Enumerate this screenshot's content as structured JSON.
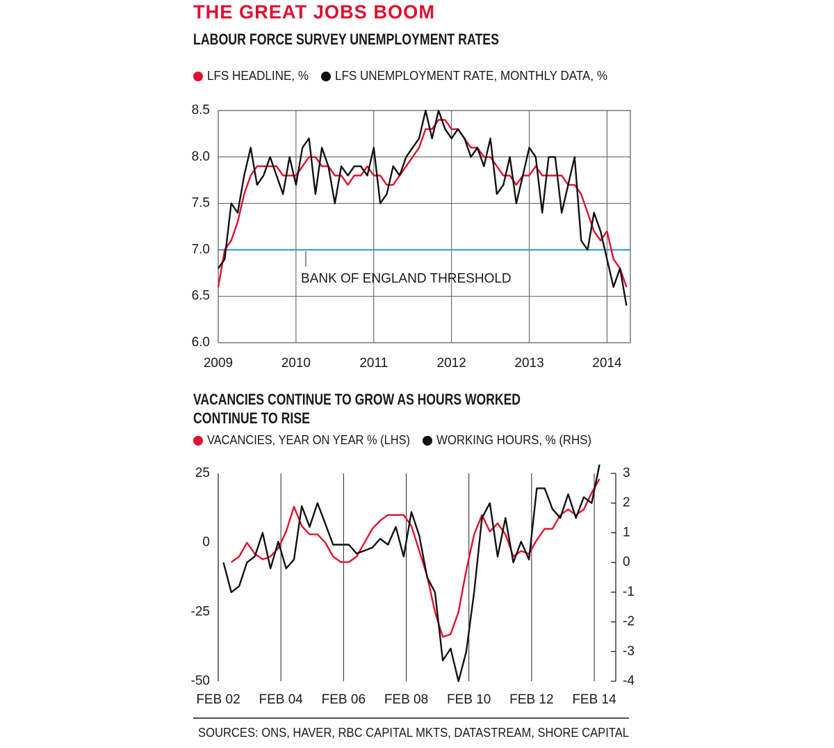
{
  "header": {
    "title": "THE GREAT JOBS BOOM"
  },
  "source": "SOURCES: ONS, HAVER, RBC CAPITAL MKTS, DATASTREAM, SHORE CAPITAL",
  "chart_data": [
    {
      "type": "line",
      "title": [
        "LABOUR FORCE SURVEY UNEMPLOYMENT RATES"
      ],
      "x": [
        2009,
        2009.083,
        2009.167,
        2009.25,
        2009.333,
        2009.417,
        2009.5,
        2009.583,
        2009.667,
        2009.75,
        2009.833,
        2009.917,
        2010,
        2010.083,
        2010.167,
        2010.25,
        2010.333,
        2010.417,
        2010.5,
        2010.583,
        2010.667,
        2010.75,
        2010.833,
        2010.917,
        2011,
        2011.083,
        2011.167,
        2011.25,
        2011.333,
        2011.417,
        2011.5,
        2011.583,
        2011.667,
        2011.75,
        2011.833,
        2011.917,
        2012,
        2012.083,
        2012.167,
        2012.25,
        2012.333,
        2012.417,
        2012.5,
        2012.583,
        2012.667,
        2012.75,
        2012.833,
        2012.917,
        2013,
        2013.083,
        2013.167,
        2013.25,
        2013.333,
        2013.417,
        2013.5,
        2013.583,
        2013.667,
        2013.75,
        2013.833,
        2013.917,
        2014,
        2014.083,
        2014.167,
        2014.25
      ],
      "series": [
        {
          "name": "LFS HEADLINE,  %",
          "color": "#e0102f",
          "values": [
            6.6,
            7.0,
            7.1,
            7.3,
            7.6,
            7.8,
            7.9,
            7.9,
            7.9,
            7.9,
            7.8,
            7.8,
            7.8,
            7.9,
            8.0,
            8.0,
            7.9,
            7.9,
            7.8,
            7.8,
            7.7,
            7.8,
            7.8,
            7.9,
            7.8,
            7.8,
            7.7,
            7.7,
            7.8,
            7.9,
            8.0,
            8.1,
            8.3,
            8.3,
            8.4,
            8.4,
            8.3,
            8.3,
            8.2,
            8.1,
            8.1,
            8.0,
            8.0,
            7.9,
            7.8,
            7.8,
            7.7,
            7.8,
            7.8,
            7.9,
            7.8,
            7.8,
            7.8,
            7.8,
            7.7,
            7.7,
            7.6,
            7.4,
            7.2,
            7.1,
            7.2,
            6.9,
            6.8,
            6.6
          ]
        },
        {
          "name": "LFS UNEMPLOYMENT RATE, MONTHLY DATA, %",
          "color": "#111111",
          "values": [
            6.8,
            6.9,
            7.5,
            7.4,
            7.8,
            8.1,
            7.7,
            7.8,
            8.0,
            7.8,
            7.6,
            8.0,
            7.7,
            8.1,
            8.2,
            7.6,
            8.1,
            7.9,
            7.5,
            7.9,
            7.8,
            7.9,
            7.9,
            7.8,
            8.1,
            7.5,
            7.6,
            7.9,
            7.8,
            8.0,
            8.1,
            8.2,
            8.5,
            8.2,
            8.5,
            8.3,
            8.2,
            8.3,
            8.2,
            8.0,
            8.1,
            7.9,
            8.2,
            7.6,
            7.7,
            8.0,
            7.5,
            7.8,
            8.1,
            8.0,
            7.4,
            8.0,
            8.0,
            7.4,
            7.7,
            8.0,
            7.1,
            7.0,
            7.4,
            7.2,
            6.9,
            6.6,
            6.8,
            6.4
          ]
        }
      ],
      "threshold": {
        "value": 7.0,
        "label": "BANK OF ENGLAND THRESHOLD",
        "color": "#2596c0"
      },
      "xlim": [
        2009,
        2014.3
      ],
      "xticks": [
        2009,
        2010,
        2011,
        2012,
        2013,
        2014
      ],
      "ylim": [
        6,
        8.5
      ],
      "yticks": [
        {
          "value": 6,
          "label": "6.0"
        },
        6.5,
        {
          "value": 7,
          "label": "7.0"
        },
        7.5,
        {
          "value": 8,
          "label": "8.0"
        },
        8.5
      ],
      "grid": true
    },
    {
      "type": "line",
      "title": [
        "VACANCIES CONTINUE TO GROW AS HOURS WORKED",
        "CONTINUE TO RISE"
      ],
      "x": [
        2002.25,
        2002.5,
        2002.75,
        2003,
        2003.25,
        2003.5,
        2003.75,
        2004,
        2004.25,
        2004.5,
        2004.75,
        2005,
        2005.25,
        2005.5,
        2005.75,
        2006,
        2006.25,
        2006.5,
        2006.75,
        2007,
        2007.25,
        2007.5,
        2007.75,
        2008,
        2008.25,
        2008.5,
        2008.75,
        2009,
        2009.25,
        2009.5,
        2009.75,
        2010,
        2010.25,
        2010.5,
        2010.75,
        2011,
        2011.25,
        2011.5,
        2011.75,
        2012,
        2012.25,
        2012.5,
        2012.75,
        2013,
        2013.25,
        2013.5,
        2013.75,
        2014,
        2014.25
      ],
      "series": [
        {
          "name": "VACANCIES, YEAR ON YEAR % (LHS)",
          "color": "#e0102f",
          "values": [
            null,
            -7,
            -5,
            0,
            -4,
            -6,
            -5,
            -2,
            4,
            13,
            6,
            3,
            3,
            0,
            -5,
            -7,
            -7,
            -5,
            0,
            5,
            8,
            10,
            10,
            10,
            6,
            -3,
            -12,
            -25,
            -34,
            -33,
            -25,
            -10,
            3,
            10,
            4,
            7,
            3,
            -5,
            -3,
            -4,
            1,
            5,
            5,
            10,
            12,
            10,
            12,
            18,
            23
          ]
        },
        {
          "name": "WORKING HOURS, % (RHS)",
          "color": "#111111",
          "axis": "y2",
          "values": [
            0,
            -1,
            -0.8,
            0,
            0.2,
            1,
            -0.2,
            0.7,
            -0.2,
            0.1,
            1.9,
            1.2,
            2,
            1.3,
            0.6,
            0.6,
            0.6,
            0.3,
            0.4,
            0.5,
            0.8,
            0.6,
            1.2,
            0.2,
            1.7,
            0.9,
            -0.5,
            -1,
            -3.3,
            -2.9,
            -4,
            -3,
            -1,
            1.5,
            2,
            0.2,
            1.5,
            0,
            0.7,
            0.1,
            2.5,
            2.5,
            1.8,
            1.5,
            2.3,
            1.5,
            2.2,
            2,
            3.3
          ]
        }
      ],
      "xlim": [
        2002.083,
        2014.77
      ],
      "xticks": [
        {
          "value": 2002.083,
          "label": "FEB 02"
        },
        {
          "value": 2004.083,
          "label": "FEB 04"
        },
        {
          "value": 2006.083,
          "label": "FEB 06"
        },
        {
          "value": 2008.083,
          "label": "FEB 08"
        },
        {
          "value": 2010.083,
          "label": "FEB 10"
        },
        {
          "value": 2012.083,
          "label": "FEB 12"
        },
        {
          "value": 2014.083,
          "label": "FEB 14"
        }
      ],
      "ylim": [
        -50,
        25
      ],
      "yticks": [
        -50,
        -25,
        0,
        25
      ],
      "y2lim": [
        -4,
        3
      ],
      "y2ticks": [
        -4,
        -3,
        -2,
        -1,
        0,
        1,
        2,
        3
      ],
      "grid": "x"
    }
  ]
}
